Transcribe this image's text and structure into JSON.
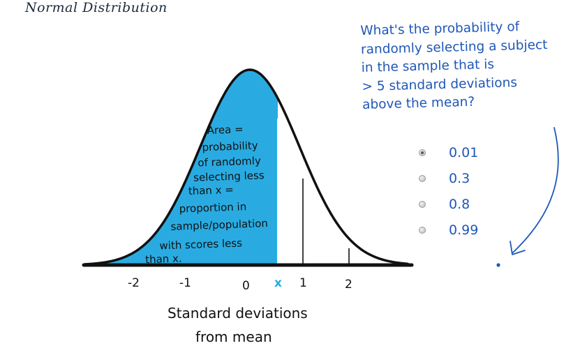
{
  "title": "Normal Distribution",
  "area_text": [
    "Area =",
    "probability",
    "of randomly",
    "selecting less",
    "than x =",
    "proportion in",
    "sample/population",
    "with scores less",
    "than x."
  ],
  "axis_ticks": [
    "-2",
    "-1",
    "0",
    "x",
    "1",
    "2"
  ],
  "xlabel_lines": [
    "Standard deviations",
    "from mean"
  ],
  "question_lines": [
    "What's the probability of",
    "randomly selecting a subject",
    "in the sample that is",
    "> 5 standard deviations",
    "above the mean?"
  ],
  "options": [
    {
      "label": "0.01",
      "selected": true
    },
    {
      "label": "0.3",
      "selected": false
    },
    {
      "label": "0.8",
      "selected": false
    },
    {
      "label": "0.99",
      "selected": false
    }
  ],
  "colors": {
    "shaded_area": "#29abe2",
    "ink": "#111111",
    "question_ink": "#1f57b8",
    "x_marker": "#29abe2"
  }
}
